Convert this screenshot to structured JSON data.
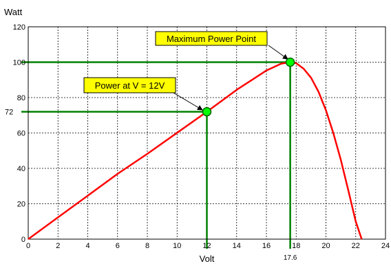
{
  "chart_data": {
    "type": "line",
    "ylabel": "Watt",
    "xlabel": "Volt",
    "xlim": [
      0,
      24
    ],
    "ylim": [
      0,
      120
    ],
    "grid": true,
    "x_ticks": [
      0,
      2,
      4,
      6,
      8,
      10,
      12,
      14,
      16,
      18,
      20,
      22,
      24
    ],
    "x_tick_labels": [
      "0",
      "2",
      "4",
      "6",
      "8",
      "10",
      "12",
      "14",
      "16",
      "18",
      "20",
      "22",
      "24"
    ],
    "y_ticks": [
      0,
      20,
      40,
      60,
      80,
      100,
      120
    ],
    "y_tick_labels": [
      "0",
      "20",
      "40",
      "60",
      "80",
      "100",
      "120"
    ],
    "series": [
      {
        "color": "#ff0000",
        "x": [
          0,
          2,
          4,
          6,
          8,
          10,
          12,
          14,
          16,
          17,
          17.6,
          18,
          18.5,
          19,
          19.5,
          20,
          20.5,
          21,
          21.5,
          22,
          22.4
        ],
        "y": [
          0,
          12.3,
          24.6,
          36.9,
          48.2,
          60.1,
          72,
          84.4,
          95.3,
          99.2,
          100,
          99.4,
          96.3,
          91.2,
          83.3,
          72.8,
          59.8,
          44.8,
          27.7,
          10,
          0
        ]
      }
    ],
    "highlight_points": [
      {
        "x": 12,
        "y": 72,
        "label": "Power at V = 12V",
        "x_marker": "",
        "y_marker": "72"
      },
      {
        "x": 17.6,
        "y": 100,
        "label": "Maximum Power Point",
        "x_marker": "17.6",
        "y_marker": ""
      }
    ],
    "colors": {
      "curve": "#ff0000",
      "guide_lines": "#008000",
      "marker_fill": "#00ff00",
      "marker_stroke": "#006400",
      "callout_fill": "#ffff00",
      "grid": "#000000"
    }
  }
}
